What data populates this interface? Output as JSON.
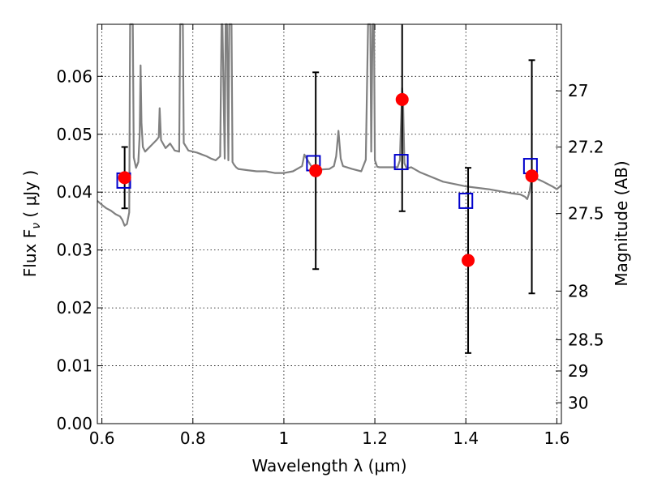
{
  "chart_data": {
    "type": "scatter",
    "xlabel": "Wavelength  λ (μm)",
    "ylabel": "Flux  F",
    "ylabel_sub": "ν",
    "ylabel_unit": " ( μJy )",
    "y2label": "Magnitude (AB)",
    "xlim": [
      0.59,
      1.61
    ],
    "ylim": [
      0.0,
      0.069
    ],
    "grid": true,
    "x_ticks": [
      0.6,
      0.8,
      1.0,
      1.2,
      1.4,
      1.6
    ],
    "x_tick_labels": [
      "0.6",
      "0.8",
      "1",
      "1.2",
      "1.4",
      "1.6"
    ],
    "y_ticks": [
      0.0,
      0.01,
      0.02,
      0.03,
      0.04,
      0.05,
      0.06
    ],
    "y_tick_labels": [
      "0.00",
      "0.01",
      "0.02",
      "0.03",
      "0.04",
      "0.05",
      "0.06"
    ],
    "y2_ticks": [
      {
        "label": "27",
        "flux": 0.0575
      },
      {
        "label": "27.2",
        "flux": 0.0478
      },
      {
        "label": "27.5",
        "flux": 0.0363
      },
      {
        "label": "28",
        "flux": 0.0229
      },
      {
        "label": "28.5",
        "flux": 0.0145
      },
      {
        "label": "29",
        "flux": 0.0091
      },
      {
        "label": "30",
        "flux": 0.0036
      }
    ],
    "series": [
      {
        "kind": "model_spectrum",
        "color": "#808080",
        "x": [
          0.59,
          0.6,
          0.61,
          0.62,
          0.63,
          0.64,
          0.645,
          0.65,
          0.655,
          0.66,
          0.662,
          0.665,
          0.668,
          0.67,
          0.675,
          0.68,
          0.683,
          0.685,
          0.687,
          0.69,
          0.695,
          0.7,
          0.71,
          0.72,
          0.725,
          0.727,
          0.73,
          0.74,
          0.75,
          0.76,
          0.77,
          0.772,
          0.775,
          0.778,
          0.78,
          0.79,
          0.8,
          0.81,
          0.82,
          0.83,
          0.84,
          0.85,
          0.86,
          0.863,
          0.865,
          0.87,
          0.872,
          0.875,
          0.878,
          0.88,
          0.882,
          0.885,
          0.887,
          0.89,
          0.895,
          0.9,
          0.92,
          0.94,
          0.96,
          0.98,
          1.0,
          1.02,
          1.04,
          1.045,
          1.05,
          1.06,
          1.08,
          1.1,
          1.11,
          1.115,
          1.12,
          1.125,
          1.13,
          1.15,
          1.17,
          1.18,
          1.185,
          1.19,
          1.192,
          1.195,
          1.198,
          1.2,
          1.205,
          1.21,
          1.25,
          1.255,
          1.258,
          1.26,
          1.262,
          1.265,
          1.27,
          1.28,
          1.3,
          1.35,
          1.4,
          1.45,
          1.5,
          1.52,
          1.53,
          1.535,
          1.54,
          1.545,
          1.55,
          1.57,
          1.59,
          1.6,
          1.61
        ],
        "y": [
          0.0385,
          0.0378,
          0.0372,
          0.0368,
          0.0362,
          0.0358,
          0.0352,
          0.0342,
          0.0345,
          0.0365,
          0.07,
          0.07,
          0.07,
          0.046,
          0.0442,
          0.0452,
          0.05,
          0.0619,
          0.052,
          0.0478,
          0.047,
          0.0474,
          0.0482,
          0.049,
          0.0495,
          0.0545,
          0.049,
          0.0476,
          0.0484,
          0.0472,
          0.047,
          0.07,
          0.07,
          0.07,
          0.0485,
          0.0472,
          0.047,
          0.0468,
          0.0465,
          0.0462,
          0.0458,
          0.0455,
          0.0462,
          0.07,
          0.07,
          0.0458,
          0.07,
          0.07,
          0.0455,
          0.07,
          0.07,
          0.07,
          0.0452,
          0.0448,
          0.0443,
          0.044,
          0.0438,
          0.0436,
          0.0436,
          0.0433,
          0.0433,
          0.0436,
          0.0445,
          0.0465,
          0.0458,
          0.0445,
          0.0439,
          0.044,
          0.0445,
          0.0462,
          0.0506,
          0.0458,
          0.0445,
          0.044,
          0.0436,
          0.0456,
          0.07,
          0.07,
          0.047,
          0.07,
          0.07,
          0.0455,
          0.0444,
          0.0443,
          0.0443,
          0.0455,
          0.053,
          0.058,
          0.056,
          0.045,
          0.0441,
          0.0443,
          0.0434,
          0.0418,
          0.041,
          0.0405,
          0.0398,
          0.0396,
          0.0392,
          0.0388,
          0.04,
          0.0428,
          0.0425,
          0.0418,
          0.041,
          0.0405,
          0.0412
        ]
      },
      {
        "kind": "observed",
        "marker": "circle",
        "color": "#ff0000",
        "points": [
          {
            "x": 0.65,
            "y": 0.0425,
            "err_lo": 0.0372,
            "err_hi": 0.0478
          },
          {
            "x": 1.07,
            "y": 0.0437,
            "err_lo": 0.0267,
            "err_hi": 0.0607
          },
          {
            "x": 1.26,
            "y": 0.056,
            "err_lo": 0.0367,
            "err_hi": 0.07
          },
          {
            "x": 1.405,
            "y": 0.0282,
            "err_lo": 0.0122,
            "err_hi": 0.0442
          },
          {
            "x": 1.545,
            "y": 0.0428,
            "err_lo": 0.0225,
            "err_hi": 0.0628
          }
        ]
      },
      {
        "kind": "model_photometry",
        "marker": "square",
        "color": "#0000cc",
        "points": [
          {
            "x": 0.648,
            "y": 0.042
          },
          {
            "x": 1.065,
            "y": 0.045
          },
          {
            "x": 1.258,
            "y": 0.0452
          },
          {
            "x": 1.4,
            "y": 0.0385
          },
          {
            "x": 1.542,
            "y": 0.0445
          }
        ]
      }
    ]
  }
}
